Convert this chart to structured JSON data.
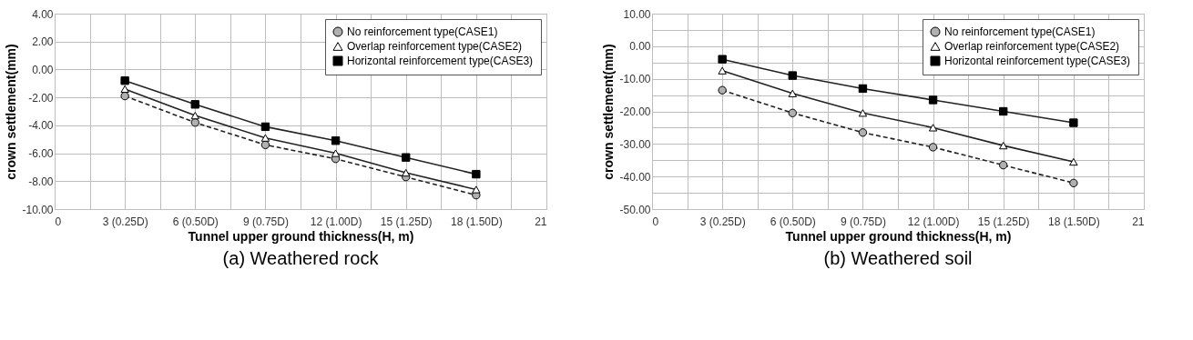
{
  "chart_data": [
    {
      "type": "line",
      "title": "(a) Weathered rock",
      "xlabel": "Tunnel upper ground thickness(H, m)",
      "ylabel": "crown settlement(mm)",
      "x": [
        3,
        6,
        9,
        12,
        15,
        18
      ],
      "series": [
        {
          "name": "No reinforcement type(CASE1)",
          "color": "#b0b0b0",
          "marker": "circle",
          "line_style": "dashed",
          "values": [
            -1.9,
            -3.8,
            -5.4,
            -6.4,
            -7.7,
            -9.0
          ]
        },
        {
          "name": "Overlap reinforcement type(CASE2)",
          "color": "#ffffff",
          "marker": "triangle",
          "line_style": "solid",
          "values": [
            -1.4,
            -3.3,
            -4.9,
            -6.0,
            -7.4,
            -8.6
          ]
        },
        {
          "name": "Horizontal reinforcement type(CASE3)",
          "color": "#000000",
          "marker": "square",
          "line_style": "solid",
          "values": [
            -0.8,
            -2.5,
            -4.1,
            -5.1,
            -6.3,
            -7.5
          ]
        }
      ],
      "xlim": [
        0,
        21
      ],
      "xticks": [
        0,
        {
          "value": 1.5,
          "label": null
        },
        {
          "value": 3,
          "label": "3 (0.25D)"
        },
        {
          "value": 4.5,
          "label": null
        },
        {
          "value": 6,
          "label": "6 (0.50D)"
        },
        {
          "value": 7.5,
          "label": null
        },
        {
          "value": 9,
          "label": "9 (0.75D)"
        },
        {
          "value": 10.5,
          "label": null
        },
        {
          "value": 12,
          "label": "12 (1.00D)"
        },
        {
          "value": 13.5,
          "label": null
        },
        {
          "value": 15,
          "label": "15 (1.25D)"
        },
        {
          "value": 16.5,
          "label": null
        },
        {
          "value": 18,
          "label": "18 (1.50D)"
        },
        {
          "value": 19.5,
          "label": null
        },
        21
      ],
      "ylim": [
        -10,
        4
      ],
      "yticks": [
        {
          "value": -10,
          "label": "-10.00"
        },
        {
          "value": -8,
          "label": "-8.00"
        },
        {
          "value": -6,
          "label": "-6.00"
        },
        {
          "value": -4,
          "label": "-4.00"
        },
        {
          "value": -2,
          "label": "-2.00"
        },
        {
          "value": 0,
          "label": "0.00"
        },
        {
          "value": 2,
          "label": "2.00"
        },
        {
          "value": 4,
          "label": "4.00"
        }
      ],
      "grid": true,
      "legend": "top right"
    },
    {
      "type": "line",
      "title": "(b) Weathered soil",
      "xlabel": "Tunnel upper ground thickness(H, m)",
      "ylabel": "crown settlement(mm)",
      "x": [
        3,
        6,
        9,
        12,
        15,
        18
      ],
      "series": [
        {
          "name": "No reinforcement type(CASE1)",
          "color": "#b0b0b0",
          "marker": "circle",
          "line_style": "dashed",
          "values": [
            -13.5,
            -20.5,
            -26.5,
            -31.0,
            -36.5,
            -42.0
          ]
        },
        {
          "name": "Overlap reinforcement type(CASE2)",
          "color": "#ffffff",
          "marker": "triangle",
          "line_style": "solid",
          "values": [
            -7.5,
            -14.5,
            -20.5,
            -25.0,
            -30.5,
            -35.5
          ]
        },
        {
          "name": "Horizontal reinforcement type(CASE3)",
          "color": "#000000",
          "marker": "square",
          "line_style": "solid",
          "values": [
            -4.0,
            -9.0,
            -13.0,
            -16.5,
            -20.0,
            -23.5
          ]
        }
      ],
      "xlim": [
        0,
        21
      ],
      "xticks": [
        0,
        {
          "value": 1.5,
          "label": null
        },
        {
          "value": 3,
          "label": "3 (0.25D)"
        },
        {
          "value": 4.5,
          "label": null
        },
        {
          "value": 6,
          "label": "6 (0.50D)"
        },
        {
          "value": 7.5,
          "label": null
        },
        {
          "value": 9,
          "label": "9 (0.75D)"
        },
        {
          "value": 10.5,
          "label": null
        },
        {
          "value": 12,
          "label": "12 (1.00D)"
        },
        {
          "value": 13.5,
          "label": null
        },
        {
          "value": 15,
          "label": "15 (1.25D)"
        },
        {
          "value": 16.5,
          "label": null
        },
        {
          "value": 18,
          "label": "18 (1.50D)"
        },
        {
          "value": 19.5,
          "label": null
        },
        21
      ],
      "ylim": [
        -50,
        10
      ],
      "yticks": [
        {
          "value": -50,
          "label": "-50.00"
        },
        {
          "value": -45,
          "label": null
        },
        {
          "value": -40,
          "label": "-40.00"
        },
        {
          "value": -35,
          "label": null
        },
        {
          "value": -30,
          "label": "-30.00"
        },
        {
          "value": -25,
          "label": null
        },
        {
          "value": -20,
          "label": "-20.00"
        },
        {
          "value": -15,
          "label": null
        },
        {
          "value": -10,
          "label": "-10.00"
        },
        {
          "value": -5,
          "label": null
        },
        {
          "value": 0,
          "label": "0.00"
        },
        {
          "value": 5,
          "label": null
        },
        {
          "value": 10,
          "label": "10.00"
        }
      ],
      "grid": true,
      "legend": "top right"
    }
  ]
}
